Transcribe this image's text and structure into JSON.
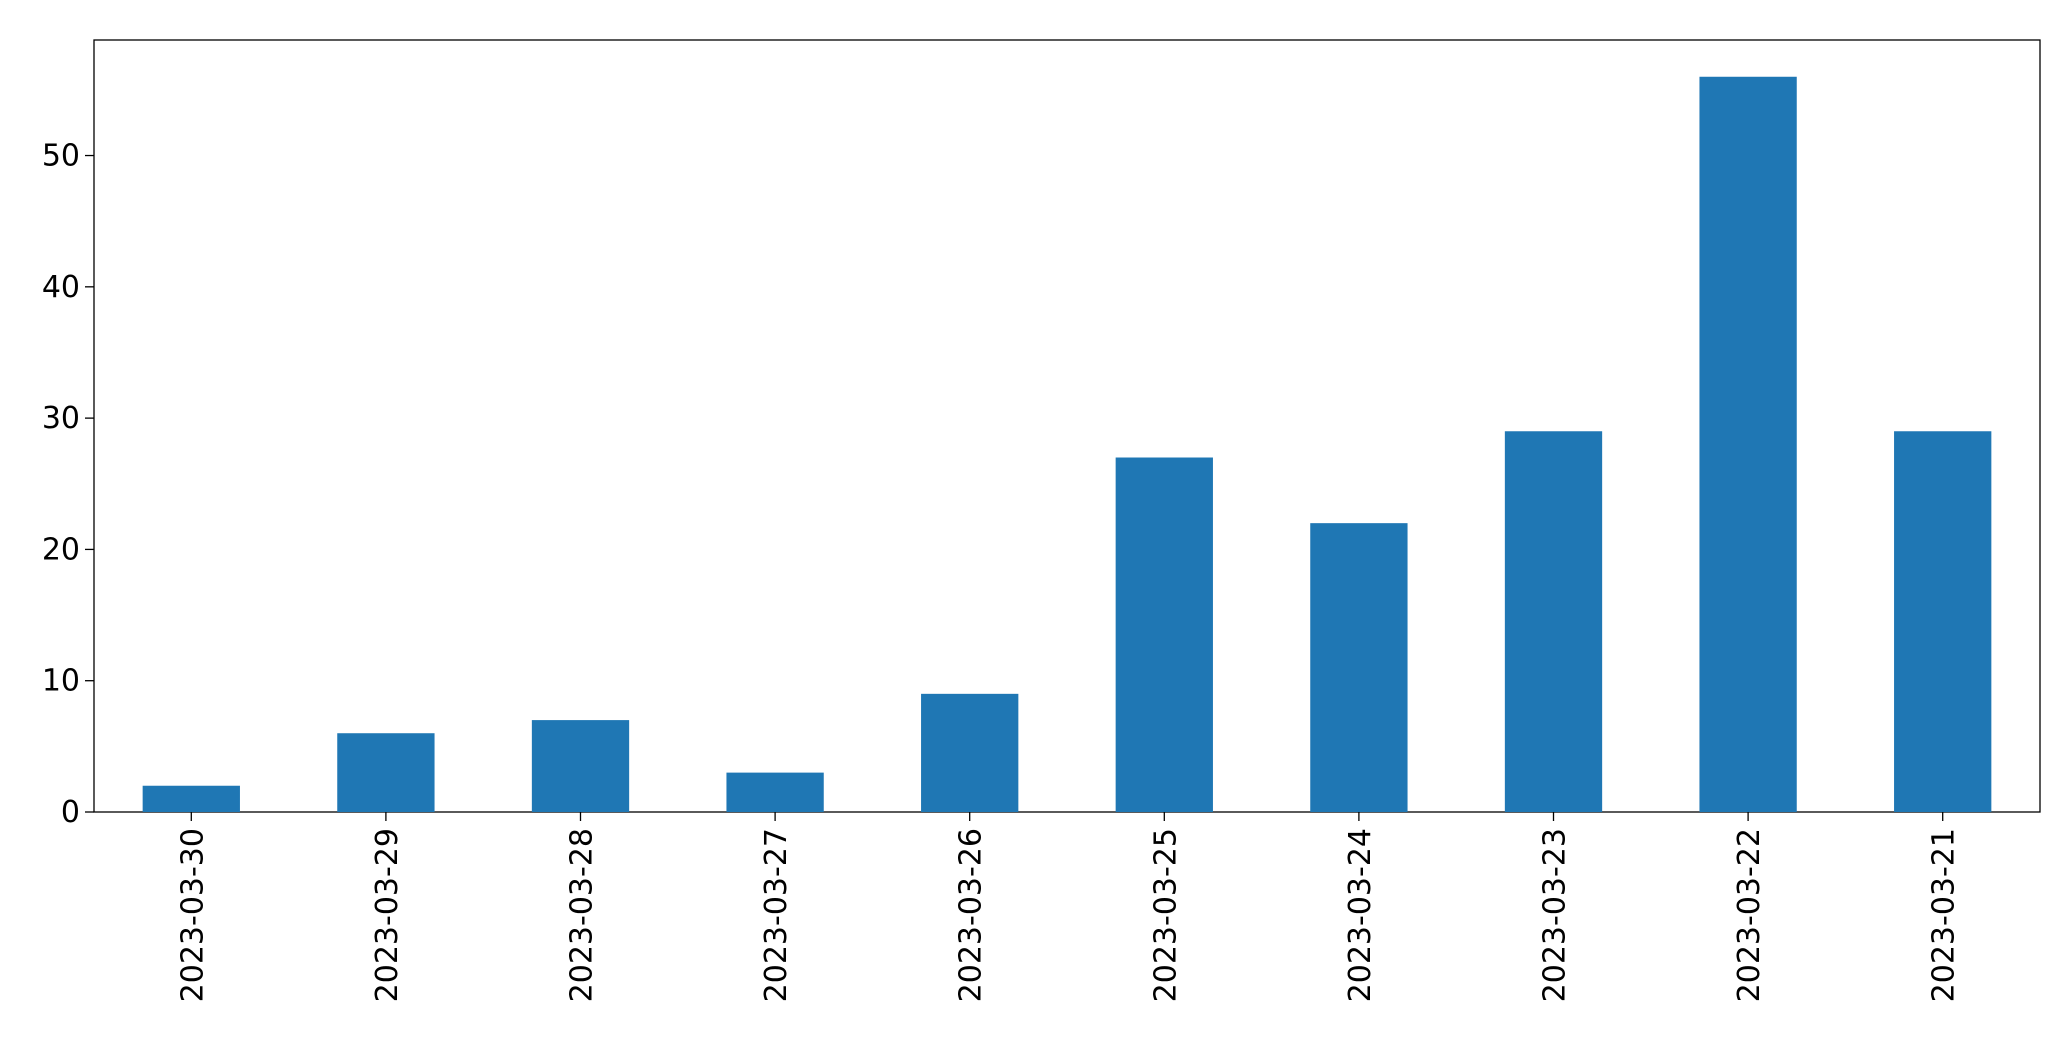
{
  "chart_data": {
    "type": "bar",
    "categories": [
      "2023-03-30",
      "2023-03-29",
      "2023-03-28",
      "2023-03-27",
      "2023-03-26",
      "2023-03-25",
      "2023-03-24",
      "2023-03-23",
      "2023-03-22",
      "2023-03-21"
    ],
    "values": [
      2,
      6,
      7,
      3,
      9,
      27,
      22,
      29,
      56,
      29
    ],
    "color": "#1f77b4",
    "ylim": [
      0,
      58.8
    ],
    "yticks": [
      0,
      10,
      20,
      30,
      40,
      50
    ],
    "grid": false
  }
}
